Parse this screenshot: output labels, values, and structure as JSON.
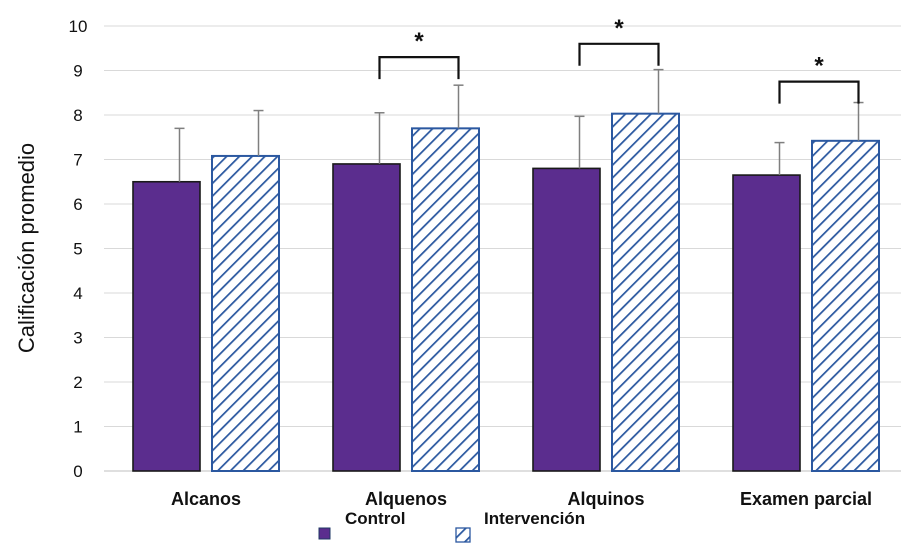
{
  "chart_data": {
    "type": "bar",
    "title": "",
    "xlabel": "",
    "ylabel": "Calificación promedio",
    "ylim": [
      0,
      10
    ],
    "yticks": [
      "0",
      "1",
      "2",
      "3",
      "4",
      "5",
      "6",
      "7",
      "8",
      "9",
      "10"
    ],
    "categories": [
      "Alcanos",
      "Alquenos",
      "Alquinos",
      "Examen parcial"
    ],
    "series": [
      {
        "name": "Control",
        "values": [
          6.5,
          6.9,
          6.8,
          6.65
        ],
        "error_upper": [
          7.7,
          8.05,
          7.97,
          7.38
        ],
        "color": "#5b2d8e",
        "pattern": "solid"
      },
      {
        "name": "Intervención",
        "values": [
          7.08,
          7.7,
          8.03,
          7.42
        ],
        "error_upper": [
          8.1,
          8.67,
          9.02,
          8.28
        ],
        "color": "#2b58a0",
        "pattern": "diagonal-hatch"
      }
    ],
    "significance": [
      {
        "category": "Alquenos",
        "label": "*",
        "bracket_level": 9.3
      },
      {
        "category": "Alquinos",
        "label": "*",
        "bracket_level": 9.6
      },
      {
        "category": "Examen parcial",
        "label": "*",
        "bracket_level": 8.75
      }
    ],
    "grid": true,
    "legend_position": "bottom-center"
  },
  "colors": {
    "control": "#5b2d8e",
    "intervention_stroke": "#2b58a0",
    "grid": "#d9d9d9",
    "error_bar": "#7f7f7f"
  }
}
